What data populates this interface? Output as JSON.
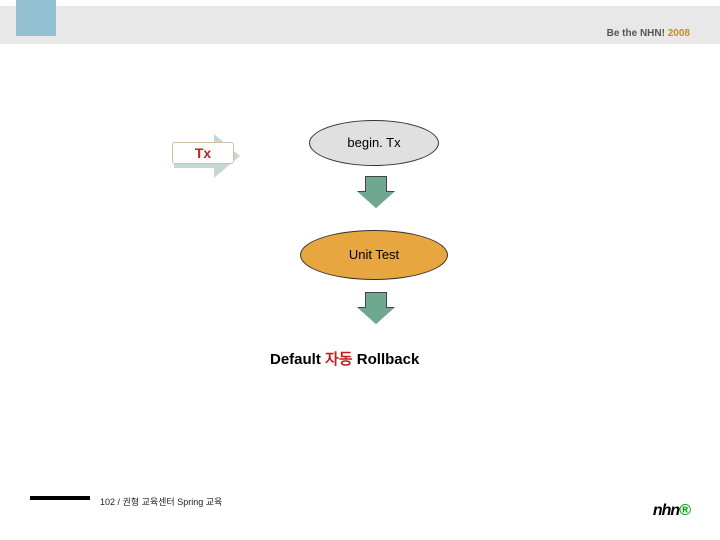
{
  "header": {
    "accent_color": "#93c1d1",
    "bar_color": "#e8e8e8",
    "tagline_prefix": "Be the NHN! ",
    "tagline_year": "2008"
  },
  "diagram": {
    "tx_label": "Tx",
    "tx_label_color": "#c02020",
    "tx_label_bg": "#ffffff",
    "tx_label_border": "#d3bfa8",
    "big_arrow_color": "#8bb39e",
    "begin_node": {
      "text": "begin. Tx",
      "bg": "#e0e0e0",
      "shape": "ellipse"
    },
    "unit_node": {
      "text": "Unit Test",
      "bg": "#e8a640",
      "shape": "ellipse"
    },
    "down_arrow_color": "#6fa890",
    "result": {
      "prefix": "Default ",
      "mid": "자동",
      "suffix": " Rollback",
      "highlight_color": "#c02020"
    }
  },
  "footer": {
    "page_text": "102 / 권형 교육센터 Spring 교육"
  },
  "logo": {
    "text": "nhn",
    "dot": "®"
  }
}
